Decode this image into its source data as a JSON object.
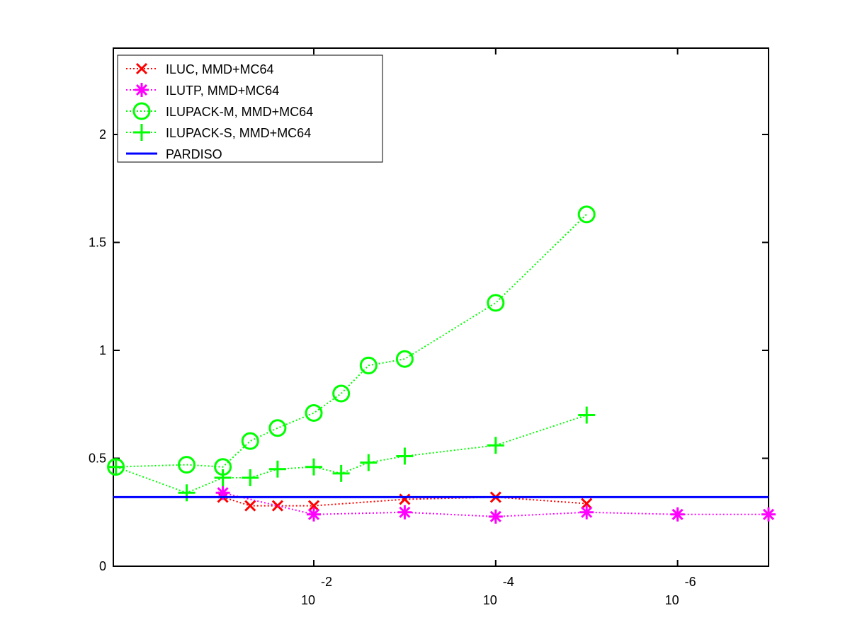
{
  "chart_data": {
    "type": "line",
    "x_scale": "log",
    "x_reversed": true,
    "xlim": [
      1.6,
      1e-07
    ],
    "ylim": [
      0,
      2.4
    ],
    "x_ticks": [
      {
        "value": 0.01,
        "base": "10",
        "exponent": "-2"
      },
      {
        "value": 0.0001,
        "base": "10",
        "exponent": "-4"
      },
      {
        "value": 1e-06,
        "base": "10",
        "exponent": "-6"
      }
    ],
    "y_ticks": [
      {
        "value": 0,
        "label": "0"
      },
      {
        "value": 0.5,
        "label": "0.5"
      },
      {
        "value": 1,
        "label": "1"
      },
      {
        "value": 1.5,
        "label": "1.5"
      },
      {
        "value": 2,
        "label": "2"
      }
    ],
    "grid": false,
    "legend_position": "top-left",
    "series": [
      {
        "name": "ILUC, MMD+MC64",
        "color": "#ff0000",
        "marker": "x",
        "line_style": "dotted",
        "points": [
          {
            "x": 0.1,
            "y": 0.32
          },
          {
            "x": 0.05,
            "y": 0.28
          },
          {
            "x": 0.025,
            "y": 0.28
          },
          {
            "x": 0.01,
            "y": 0.28
          },
          {
            "x": 0.001,
            "y": 0.31
          },
          {
            "x": 0.0001,
            "y": 0.32
          },
          {
            "x": 1e-05,
            "y": 0.29
          }
        ]
      },
      {
        "name": "ILUTP, MMD+MC64",
        "color": "#ff00ff",
        "marker": "star",
        "line_style": "dotted",
        "points": [
          {
            "x": 0.1,
            "y": 0.34
          },
          {
            "x": 0.01,
            "y": 0.24
          },
          {
            "x": 0.001,
            "y": 0.25
          },
          {
            "x": 0.0001,
            "y": 0.23
          },
          {
            "x": 1e-05,
            "y": 0.25
          },
          {
            "x": 1e-06,
            "y": 0.24
          },
          {
            "x": 1e-07,
            "y": 0.24
          }
        ]
      },
      {
        "name": "ILUPACK-M, MMD+MC64",
        "color": "#00ff00",
        "marker": "circle",
        "line_style": "dotted",
        "points": [
          {
            "x": 1.5,
            "y": 0.46
          },
          {
            "x": 0.25,
            "y": 0.47
          },
          {
            "x": 0.1,
            "y": 0.46
          },
          {
            "x": 0.05,
            "y": 0.58
          },
          {
            "x": 0.025,
            "y": 0.64
          },
          {
            "x": 0.01,
            "y": 0.71
          },
          {
            "x": 0.005,
            "y": 0.8
          },
          {
            "x": 0.0025,
            "y": 0.93
          },
          {
            "x": 0.001,
            "y": 0.96
          },
          {
            "x": 0.0001,
            "y": 1.22
          },
          {
            "x": 1e-05,
            "y": 1.63
          }
        ]
      },
      {
        "name": "ILUPACK-S, MMD+MC64",
        "color": "#00ff00",
        "marker": "plus",
        "line_style": "dotted",
        "points": [
          {
            "x": 1.5,
            "y": 0.46
          },
          {
            "x": 0.25,
            "y": 0.34
          },
          {
            "x": 0.1,
            "y": 0.41
          },
          {
            "x": 0.05,
            "y": 0.41
          },
          {
            "x": 0.025,
            "y": 0.45
          },
          {
            "x": 0.01,
            "y": 0.46
          },
          {
            "x": 0.005,
            "y": 0.43
          },
          {
            "x": 0.0025,
            "y": 0.48
          },
          {
            "x": 0.001,
            "y": 0.51
          },
          {
            "x": 0.0001,
            "y": 0.56
          },
          {
            "x": 1e-05,
            "y": 0.7
          }
        ]
      },
      {
        "name": "PARDISO",
        "color": "#0000ff",
        "marker": "none",
        "line_style": "solid",
        "constant_y": 0.32
      }
    ]
  }
}
